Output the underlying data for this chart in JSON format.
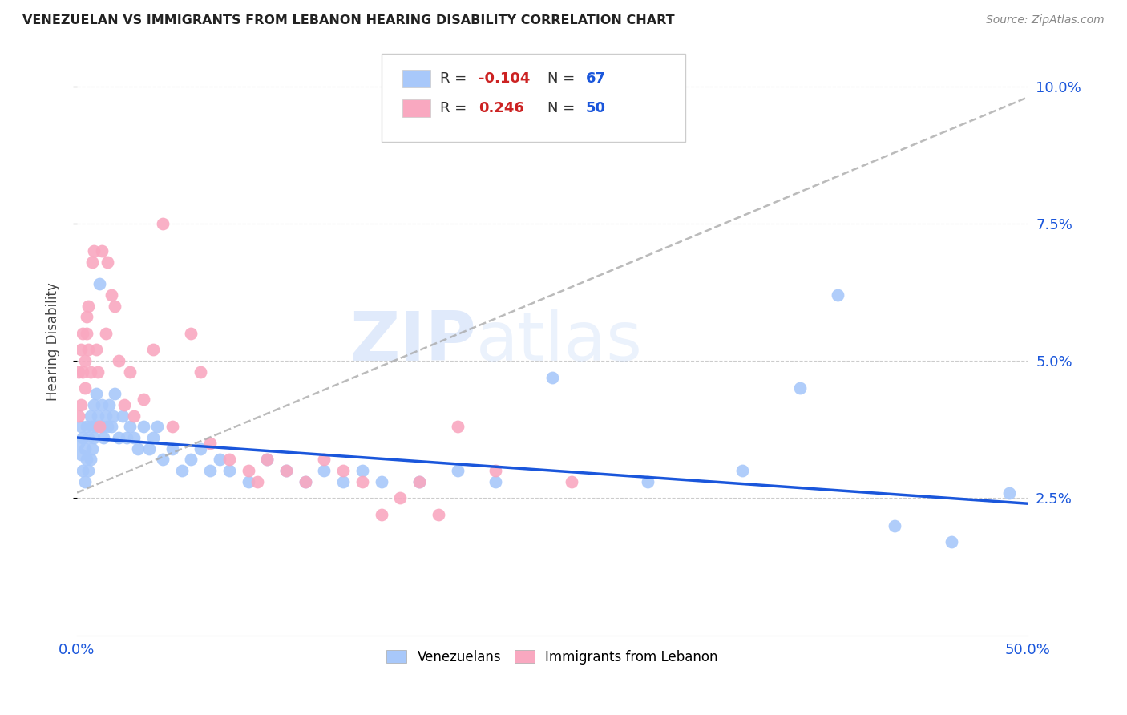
{
  "title": "VENEZUELAN VS IMMIGRANTS FROM LEBANON HEARING DISABILITY CORRELATION CHART",
  "source": "Source: ZipAtlas.com",
  "ylabel": "Hearing Disability",
  "xlim": [
    0.0,
    0.5
  ],
  "ylim": [
    0.0,
    0.107
  ],
  "yticks": [
    0.025,
    0.05,
    0.075,
    0.1
  ],
  "ytick_labels": [
    "2.5%",
    "5.0%",
    "7.5%",
    "10.0%"
  ],
  "xticks": [
    0.0,
    0.1,
    0.2,
    0.3,
    0.4,
    0.5
  ],
  "xtick_labels": [
    "0.0%",
    "",
    "",
    "",
    "",
    "50.0%"
  ],
  "venezuelan_color": "#a8c8fa",
  "lebanon_color": "#f9a8c0",
  "venezuelan_R": -0.104,
  "venezuelan_N": 67,
  "lebanon_R": 0.246,
  "lebanon_N": 50,
  "watermark_zip": "ZIP",
  "watermark_atlas": "atlas",
  "venezuela_trendline_x": [
    0.0,
    0.5
  ],
  "venezuela_trendline_y": [
    0.036,
    0.024
  ],
  "lebanon_trendline_x": [
    0.0,
    0.5
  ],
  "lebanon_trendline_y": [
    0.026,
    0.098
  ],
  "venezuelan_x": [
    0.001,
    0.002,
    0.002,
    0.003,
    0.003,
    0.004,
    0.004,
    0.005,
    0.005,
    0.006,
    0.006,
    0.007,
    0.007,
    0.008,
    0.008,
    0.009,
    0.009,
    0.01,
    0.01,
    0.011,
    0.012,
    0.013,
    0.013,
    0.014,
    0.015,
    0.016,
    0.017,
    0.018,
    0.019,
    0.02,
    0.022,
    0.024,
    0.026,
    0.028,
    0.03,
    0.032,
    0.035,
    0.038,
    0.04,
    0.042,
    0.045,
    0.05,
    0.055,
    0.06,
    0.065,
    0.07,
    0.075,
    0.08,
    0.09,
    0.1,
    0.11,
    0.12,
    0.13,
    0.14,
    0.15,
    0.16,
    0.18,
    0.2,
    0.22,
    0.25,
    0.3,
    0.35,
    0.38,
    0.4,
    0.43,
    0.46,
    0.49
  ],
  "venezuelan_y": [
    0.035,
    0.033,
    0.038,
    0.03,
    0.036,
    0.028,
    0.034,
    0.032,
    0.038,
    0.03,
    0.036,
    0.032,
    0.04,
    0.034,
    0.038,
    0.036,
    0.042,
    0.038,
    0.044,
    0.04,
    0.064,
    0.038,
    0.042,
    0.036,
    0.04,
    0.038,
    0.042,
    0.038,
    0.04,
    0.044,
    0.036,
    0.04,
    0.036,
    0.038,
    0.036,
    0.034,
    0.038,
    0.034,
    0.036,
    0.038,
    0.032,
    0.034,
    0.03,
    0.032,
    0.034,
    0.03,
    0.032,
    0.03,
    0.028,
    0.032,
    0.03,
    0.028,
    0.03,
    0.028,
    0.03,
    0.028,
    0.028,
    0.03,
    0.028,
    0.047,
    0.028,
    0.03,
    0.045,
    0.062,
    0.02,
    0.017,
    0.026
  ],
  "lebanon_x": [
    0.001,
    0.001,
    0.002,
    0.002,
    0.003,
    0.003,
    0.004,
    0.004,
    0.005,
    0.005,
    0.006,
    0.006,
    0.007,
    0.008,
    0.009,
    0.01,
    0.011,
    0.012,
    0.013,
    0.015,
    0.016,
    0.018,
    0.02,
    0.022,
    0.025,
    0.028,
    0.03,
    0.035,
    0.04,
    0.045,
    0.05,
    0.06,
    0.065,
    0.07,
    0.08,
    0.09,
    0.095,
    0.1,
    0.11,
    0.12,
    0.13,
    0.14,
    0.15,
    0.16,
    0.17,
    0.18,
    0.19,
    0.2,
    0.22,
    0.26
  ],
  "lebanon_y": [
    0.04,
    0.048,
    0.052,
    0.042,
    0.055,
    0.048,
    0.05,
    0.045,
    0.055,
    0.058,
    0.06,
    0.052,
    0.048,
    0.068,
    0.07,
    0.052,
    0.048,
    0.038,
    0.07,
    0.055,
    0.068,
    0.062,
    0.06,
    0.05,
    0.042,
    0.048,
    0.04,
    0.043,
    0.052,
    0.075,
    0.038,
    0.055,
    0.048,
    0.035,
    0.032,
    0.03,
    0.028,
    0.032,
    0.03,
    0.028,
    0.032,
    0.03,
    0.028,
    0.022,
    0.025,
    0.028,
    0.022,
    0.038,
    0.03,
    0.028
  ]
}
